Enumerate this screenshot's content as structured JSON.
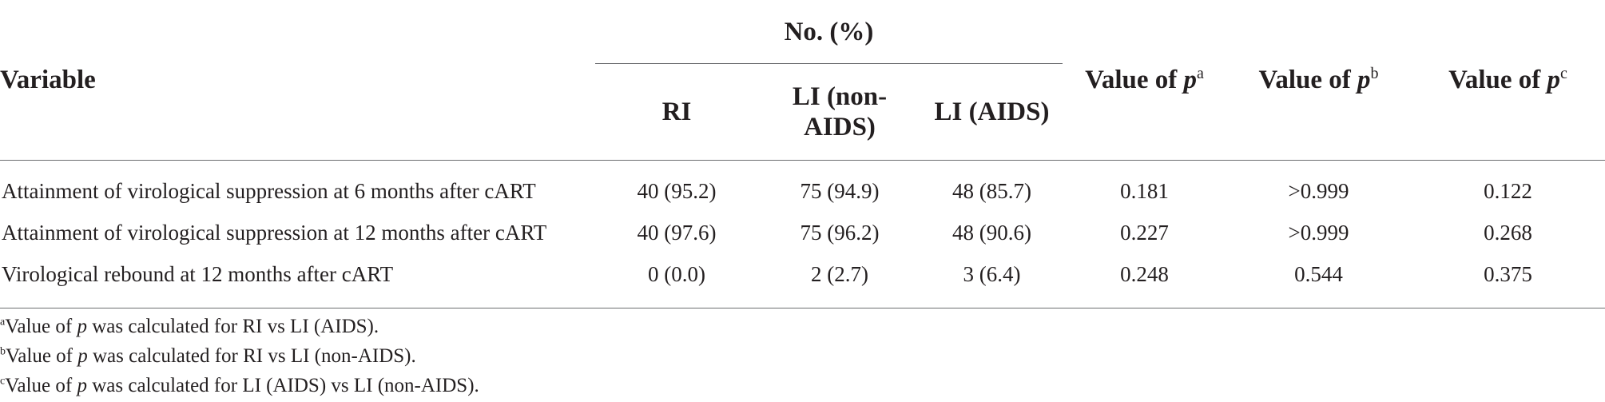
{
  "table": {
    "header": {
      "variable": "Variable",
      "group": "No. (%)",
      "subcolumns": [
        "RI",
        "LI (non-AIDS)",
        "LI (AIDS)"
      ],
      "p_columns": [
        {
          "prefix": "Value of ",
          "p": "p",
          "sup": "a"
        },
        {
          "prefix": "Value of ",
          "p": "p",
          "sup": "b"
        },
        {
          "prefix": "Value of ",
          "p": "p",
          "sup": "c"
        }
      ]
    },
    "rows": [
      {
        "variable": "Attainment of virological suppression at 6 months after cART",
        "ri": "40 (95.2)",
        "li_non_aids": "75 (94.9)",
        "li_aids": "48 (85.7)",
        "p_a": "0.181",
        "p_b": ">0.999",
        "p_c": "0.122"
      },
      {
        "variable": "Attainment of virological suppression at 12 months after cART",
        "ri": "40 (97.6)",
        "li_non_aids": "75 (96.2)",
        "li_aids": "48 (90.6)",
        "p_a": "0.227",
        "p_b": ">0.999",
        "p_c": "0.268"
      },
      {
        "variable": "Virological rebound at 12 months after cART",
        "ri": "0 (0.0)",
        "li_non_aids": "2 (2.7)",
        "li_aids": "3 (6.4)",
        "p_a": "0.248",
        "p_b": "0.544",
        "p_c": "0.375"
      }
    ]
  },
  "footnotes": [
    {
      "sup": "a",
      "before": "Value of ",
      "p": "p",
      "after": " was calculated for RI vs LI (AIDS)."
    },
    {
      "sup": "b",
      "before": "Value of ",
      "p": "p",
      "after": " was calculated for RI vs LI (non-AIDS)."
    },
    {
      "sup": "c",
      "before": "Value of ",
      "p": "p",
      "after": " was calculated for LI (AIDS) vs LI (non-AIDS)."
    }
  ]
}
